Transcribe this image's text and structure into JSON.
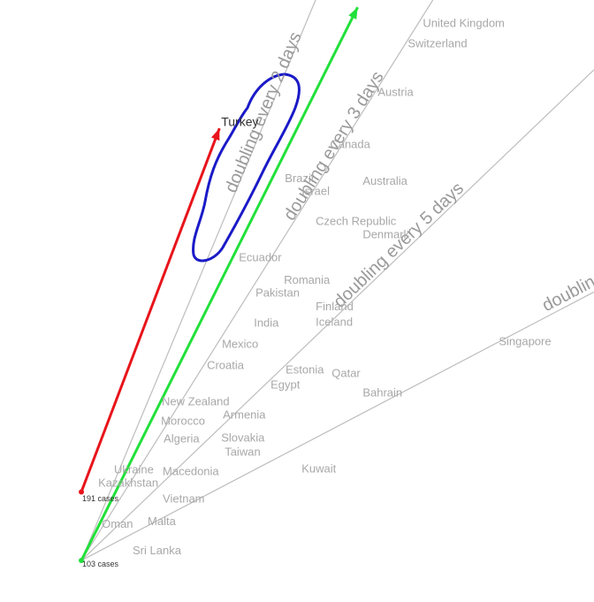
{
  "chart_data": {
    "type": "line",
    "ylog": true,
    "grid": true,
    "xlim": [
      -5.3,
      33.4
    ],
    "ylim": [
      67.6,
      19800
    ],
    "xticks": [
      0,
      10,
      20,
      30
    ],
    "yticks": [
      100,
      {
        "value": 1000,
        "label": "1,000"
      },
      {
        "value": 10000,
        "label": "10,000"
      }
    ],
    "series": [
      {
        "name": "doubling every 2 days",
        "color": "#bdbdbd",
        "x": [
          0,
          15.26
        ],
        "values": [
          100,
          19800
        ]
      },
      {
        "name": "doubling every 3 days",
        "color": "#bdbdbd",
        "x": [
          0,
          22.9
        ],
        "values": [
          100,
          19800
        ]
      },
      {
        "name": "doubling every 5 days",
        "color": "#bdbdbd",
        "x": [
          0,
          33.4
        ],
        "values": [
          100,
          10250
        ]
      },
      {
        "name": "doubling",
        "color": "#bdbdbd",
        "x": [
          0,
          33.4
        ],
        "values": [
          100,
          1260
        ]
      }
    ],
    "arrows": [
      {
        "color": "#e8141b",
        "x": [
          0,
          9
        ],
        "values": [
          191,
          5900
        ]
      },
      {
        "color": "#22e03a",
        "x": [
          0,
          18
        ],
        "values": [
          100,
          18500
        ]
      }
    ],
    "annotations": [
      {
        "text": "191 cases",
        "x": 0,
        "y": 191
      },
      {
        "text": "103 cases",
        "x": 0,
        "y": 103
      }
    ],
    "countries": [
      {
        "name": "United Kingdom",
        "x": 22.25,
        "y": 15800
      },
      {
        "name": "Switzerland",
        "x": 21.27,
        "y": 13060
      },
      {
        "name": "Austria",
        "x": 19.31,
        "y": 8260
      },
      {
        "name": "Turkey",
        "x": 9.11,
        "y": 6210,
        "highlight": true
      },
      {
        "name": "Canada",
        "x": 16.2,
        "y": 5050
      },
      {
        "name": "Brazil",
        "x": 13.26,
        "y": 3650
      },
      {
        "name": "Israel",
        "x": 14.35,
        "y": 3240
      },
      {
        "name": "Australia",
        "x": 18.33,
        "y": 3560
      },
      {
        "name": "Czech Republic",
        "x": 15.27,
        "y": 2440
      },
      {
        "name": "Denmark",
        "x": 18.33,
        "y": 2150
      },
      {
        "name": "Ecuador",
        "x": 10.26,
        "y": 1730
      },
      {
        "name": "Romania",
        "x": 13.2,
        "y": 1400
      },
      {
        "name": "Pakistan",
        "x": 11.35,
        "y": 1240
      },
      {
        "name": "Finland",
        "x": 15.27,
        "y": 1090
      },
      {
        "name": "Iceland",
        "x": 15.27,
        "y": 944
      },
      {
        "name": "India",
        "x": 11.24,
        "y": 935
      },
      {
        "name": "Mexico",
        "x": 9.16,
        "y": 766
      },
      {
        "name": "Singapore",
        "x": 27.2,
        "y": 785
      },
      {
        "name": "Croatia",
        "x": 8.18,
        "y": 627
      },
      {
        "name": "Estonia",
        "x": 13.31,
        "y": 601
      },
      {
        "name": "Qatar",
        "x": 16.31,
        "y": 581
      },
      {
        "name": "Egypt",
        "x": 12.33,
        "y": 522
      },
      {
        "name": "Bahrain",
        "x": 18.33,
        "y": 484
      },
      {
        "name": "New Zealand",
        "x": 5.24,
        "y": 445
      },
      {
        "name": "Armenia",
        "x": 9.22,
        "y": 393
      },
      {
        "name": "Morocco",
        "x": 5.19,
        "y": 371
      },
      {
        "name": "Algeria",
        "x": 5.36,
        "y": 313
      },
      {
        "name": "Slovakia",
        "x": 9.11,
        "y": 316
      },
      {
        "name": "Taiwan",
        "x": 9.34,
        "y": 277
      },
      {
        "name": "Ukraine",
        "x": 2.13,
        "y": 234
      },
      {
        "name": "Macedonia",
        "x": 5.3,
        "y": 230
      },
      {
        "name": "Kuwait",
        "x": 14.35,
        "y": 236
      },
      {
        "name": "Kazakhstan",
        "x": 1.1,
        "y": 207
      },
      {
        "name": "Vietnam",
        "x": 5.3,
        "y": 178
      },
      {
        "name": "Malta",
        "x": 4.32,
        "y": 144
      },
      {
        "name": "Oman",
        "x": 1.33,
        "y": 140
      },
      {
        "name": "Sri Lanka",
        "x": 3.34,
        "y": 109
      }
    ]
  }
}
